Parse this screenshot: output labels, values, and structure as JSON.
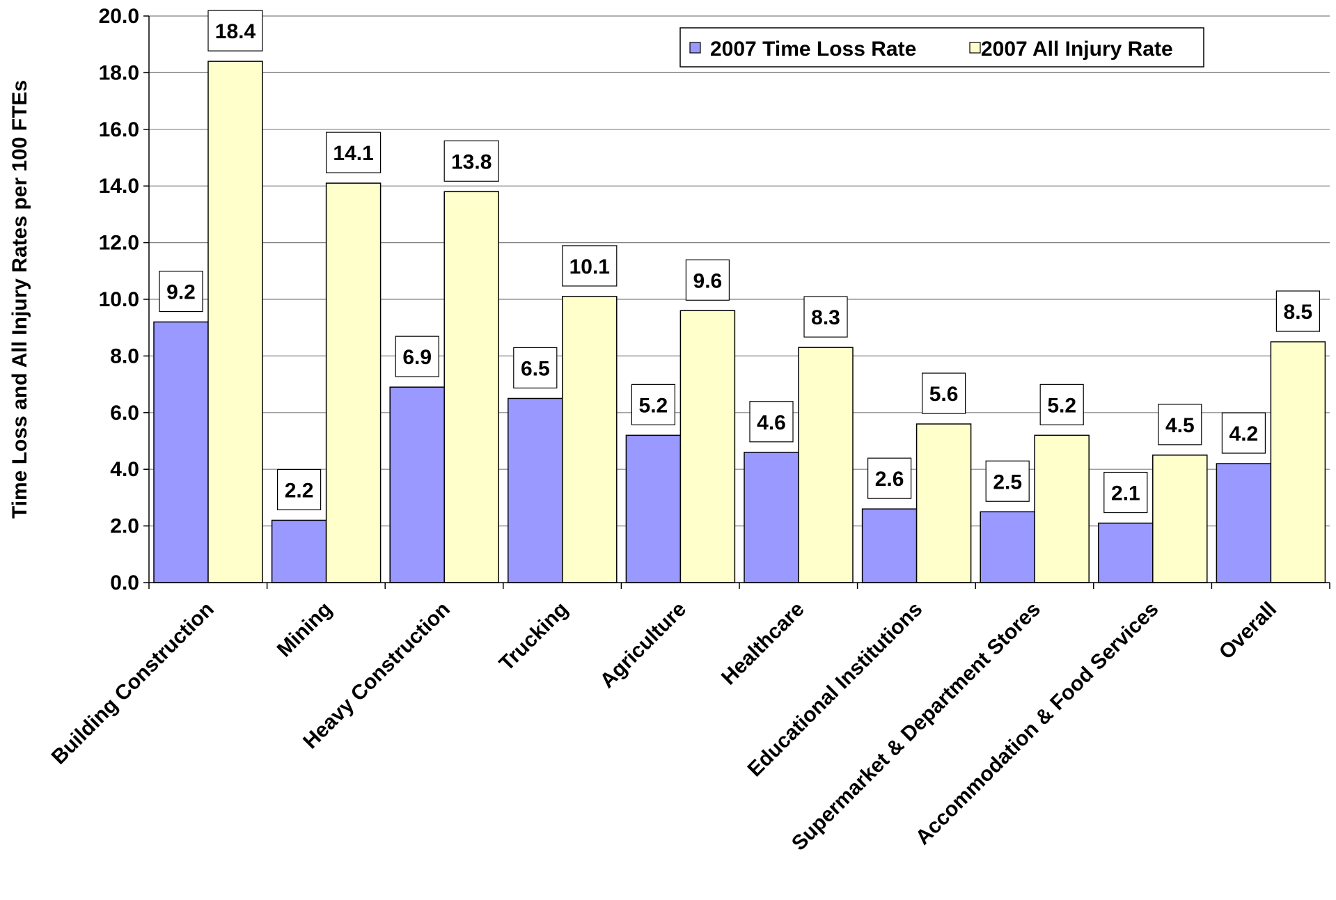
{
  "chart_data": {
    "type": "bar",
    "title": "",
    "xlabel": "",
    "ylabel": "Time Loss and All Injury Rates per 100 FTEs",
    "ylim": [
      0,
      20
    ],
    "yticks": [
      "0.0",
      "2.0",
      "4.0",
      "6.0",
      "8.0",
      "10.0",
      "12.0",
      "14.0",
      "16.0",
      "18.0",
      "20.0"
    ],
    "grid": true,
    "legend_position": "top-right",
    "categories": [
      "Building Construction",
      "Mining",
      "Heavy Construction",
      "Trucking",
      "Agriculture",
      "Healthcare",
      "Educational Institutions",
      "Supermarket & Department Stores",
      "Accommodation & Food Services",
      "Overall"
    ],
    "series": [
      {
        "name": "2007 Time Loss Rate",
        "color": "#9999ff",
        "values": [
          9.2,
          2.2,
          6.9,
          6.5,
          5.2,
          4.6,
          2.6,
          2.5,
          2.1,
          4.2
        ],
        "labels": [
          "9.2",
          "2.2",
          "6.9",
          "6.5",
          "5.2",
          "4.6",
          "2.6",
          "2.5",
          "2.1",
          "4.2"
        ]
      },
      {
        "name": "2007 All Injury Rate",
        "color": "#ffffcc",
        "values": [
          18.4,
          14.1,
          13.8,
          10.1,
          9.6,
          8.3,
          5.6,
          5.2,
          4.5,
          8.5
        ],
        "labels": [
          "18.4",
          "14.1",
          "13.8",
          "10.1",
          "9.6",
          "8.3",
          "5.6",
          "5.2",
          "4.5",
          "8.5"
        ]
      }
    ]
  }
}
